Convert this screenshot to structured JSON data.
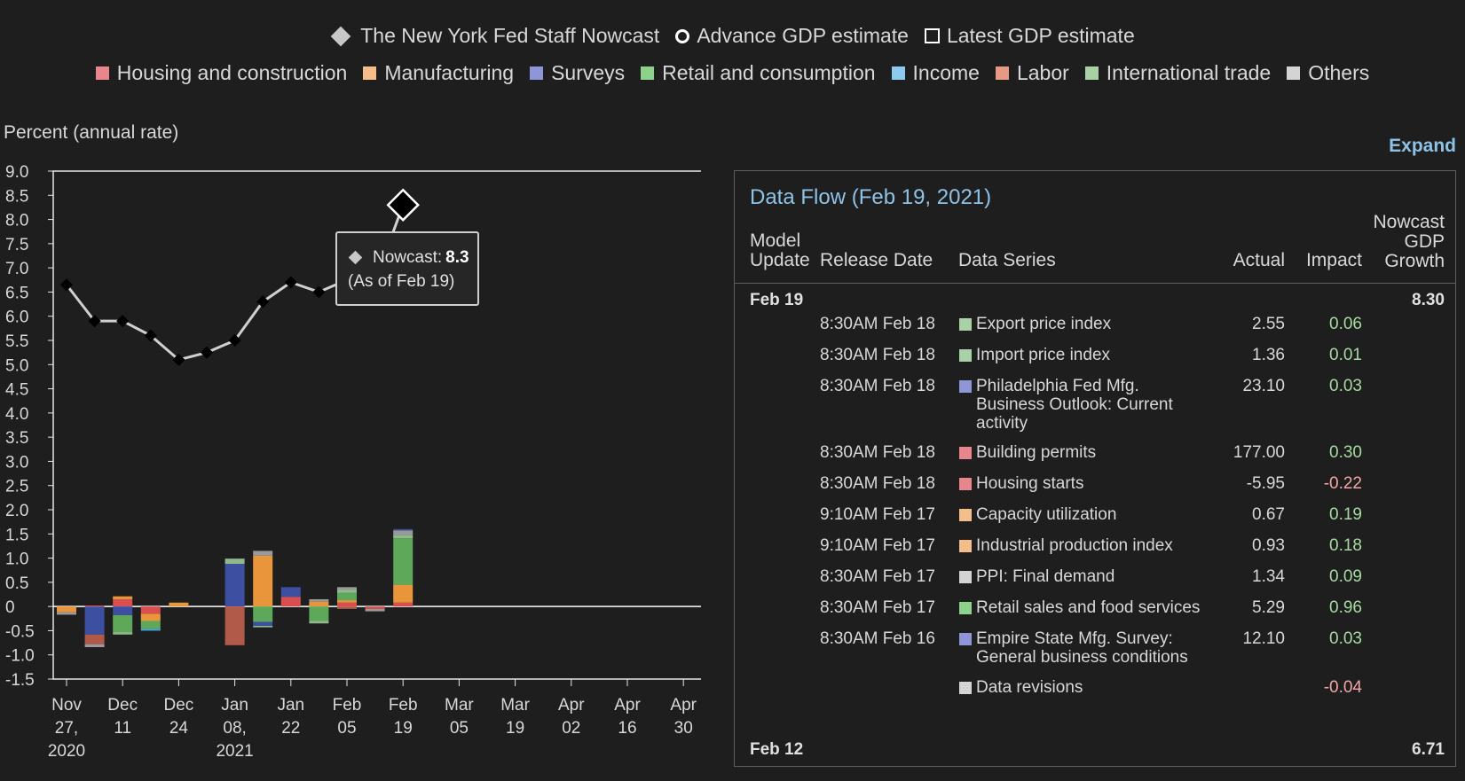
{
  "legend": {
    "markers": [
      {
        "label": "The New York Fed Staff Nowcast",
        "icon": "diamond-icon"
      },
      {
        "label": "Advance GDP estimate",
        "icon": "circle-icon"
      },
      {
        "label": "Latest GDP estimate",
        "icon": "square-outline-icon"
      }
    ],
    "categories": [
      {
        "label": "Housing and construction",
        "color": "#e8868e"
      },
      {
        "label": "Manufacturing",
        "color": "#f3be8a"
      },
      {
        "label": "Surveys",
        "color": "#8f96d8"
      },
      {
        "label": "Retail and consumption",
        "color": "#8cd28a"
      },
      {
        "label": "Income",
        "color": "#8ccbee"
      },
      {
        "label": "Labor",
        "color": "#e69a86"
      },
      {
        "label": "International trade",
        "color": "#a8d2a6"
      },
      {
        "label": "Others",
        "color": "#d4d4d4"
      }
    ]
  },
  "expand_label": "Expand",
  "tooltip": {
    "label": "Nowcast:",
    "value": "8.3",
    "asof": "(As of Feb 19)"
  },
  "chart_data": {
    "type": "line",
    "ylabel": "Percent (annual rate)",
    "ylim": [
      -1.5,
      9.0
    ],
    "yticks": [
      "9.0",
      "8.5",
      "8.0",
      "7.5",
      "7.0",
      "6.5",
      "6.0",
      "5.5",
      "5.0",
      "4.5",
      "4.0",
      "3.5",
      "3.0",
      "2.5",
      "2.0",
      "1.5",
      "1.0",
      "0.5",
      "0",
      "-0.5",
      "-1.0",
      "-1.5"
    ],
    "x_ticks": [
      [
        "Nov",
        "27,",
        "2020"
      ],
      [
        "Dec",
        "11"
      ],
      [
        "Dec",
        "24"
      ],
      [
        "Jan",
        "08,",
        "2021"
      ],
      [
        "Jan",
        "22"
      ],
      [
        "Feb",
        "05"
      ],
      [
        "Feb",
        "19"
      ],
      [
        "Mar",
        "05"
      ],
      [
        "Mar",
        "19"
      ],
      [
        "Apr",
        "02"
      ],
      [
        "Apr",
        "16"
      ],
      [
        "Apr",
        "30"
      ]
    ],
    "nowcast_series": {
      "name": "The New York Fed Staff Nowcast",
      "x": [
        "Nov 27",
        "Dec 04",
        "Dec 11",
        "Dec 18",
        "Dec 24",
        "Jan 01",
        "Jan 08",
        "Jan 15",
        "Jan 22",
        "Jan 29",
        "Feb 05",
        "Feb 12",
        "Feb 19"
      ],
      "values": [
        6.65,
        5.9,
        5.9,
        5.6,
        5.1,
        5.25,
        5.5,
        6.3,
        6.7,
        6.5,
        6.75,
        6.71,
        8.3
      ]
    },
    "impact_bars": [
      {
        "x": "Nov 27",
        "segments": [
          {
            "category": "Manufacturing",
            "value": -0.12
          },
          {
            "category": "Others",
            "value": -0.05
          }
        ]
      },
      {
        "x": "Dec 04",
        "segments": [
          {
            "category": "Surveys",
            "value": -0.58
          },
          {
            "category": "Labor",
            "value": -0.2
          },
          {
            "category": "Others",
            "value": -0.06
          },
          {
            "category": "Housing and construction",
            "value": 0.02
          }
        ]
      },
      {
        "x": "Dec 11",
        "segments": [
          {
            "category": "Housing and construction",
            "value": 0.15
          },
          {
            "category": "Manufacturing",
            "value": 0.06
          },
          {
            "category": "Surveys",
            "value": -0.18
          },
          {
            "category": "Retail and consumption",
            "value": -0.35
          },
          {
            "category": "International trade",
            "value": -0.05
          }
        ]
      },
      {
        "x": "Dec 18",
        "segments": [
          {
            "category": "Housing and construction",
            "value": -0.15
          },
          {
            "category": "Manufacturing",
            "value": -0.15
          },
          {
            "category": "Retail and consumption",
            "value": -0.16
          },
          {
            "category": "Income",
            "value": -0.04
          }
        ]
      },
      {
        "x": "Dec 24",
        "segments": [
          {
            "category": "Manufacturing",
            "value": 0.08
          }
        ]
      },
      {
        "x": "Jan 08",
        "segments": [
          {
            "category": "Surveys",
            "value": 0.88
          },
          {
            "category": "International trade",
            "value": 0.11
          },
          {
            "category": "Labor",
            "value": -0.8
          }
        ]
      },
      {
        "x": "Jan 15",
        "segments": [
          {
            "category": "Manufacturing",
            "value": 1.05
          },
          {
            "category": "Others",
            "value": 0.1
          },
          {
            "category": "Retail and consumption",
            "value": -0.32
          },
          {
            "category": "Surveys",
            "value": -0.08
          },
          {
            "category": "International trade",
            "value": -0.03
          }
        ]
      },
      {
        "x": "Jan 22",
        "segments": [
          {
            "category": "Housing and construction",
            "value": 0.2
          },
          {
            "category": "Surveys",
            "value": 0.2
          }
        ]
      },
      {
        "x": "Jan 29",
        "segments": [
          {
            "category": "Manufacturing",
            "value": 0.1
          },
          {
            "category": "Others",
            "value": 0.05
          },
          {
            "category": "Retail and consumption",
            "value": -0.3
          },
          {
            "category": "International trade",
            "value": -0.05
          }
        ]
      },
      {
        "x": "Feb 05",
        "segments": [
          {
            "category": "Housing and construction",
            "value": 0.08
          },
          {
            "category": "Manufacturing",
            "value": 0.05
          },
          {
            "category": "Retail and consumption",
            "value": 0.15
          },
          {
            "category": "International trade",
            "value": 0.07
          },
          {
            "category": "Others",
            "value": 0.05
          },
          {
            "category": "Labor",
            "value": -0.05
          }
        ]
      },
      {
        "x": "Feb 12",
        "segments": [
          {
            "category": "Housing and construction",
            "value": -0.05
          },
          {
            "category": "Others",
            "value": -0.05
          }
        ]
      },
      {
        "x": "Feb 19",
        "segments": [
          {
            "category": "Housing and construction",
            "value": 0.08
          },
          {
            "category": "Manufacturing",
            "value": 0.37
          },
          {
            "category": "Retail and consumption",
            "value": 0.96
          },
          {
            "category": "International trade",
            "value": 0.07
          },
          {
            "category": "Others",
            "value": 0.09
          },
          {
            "category": "Surveys",
            "value": 0.03
          }
        ]
      }
    ],
    "grid": false
  },
  "panel": {
    "title": "Data Flow (Feb 19, 2021)",
    "headers": {
      "model_update": [
        "Model",
        "Update"
      ],
      "release_date": "Release Date",
      "data_series": "Data Series",
      "actual": "Actual",
      "impact": "Impact",
      "nowcast": [
        "Nowcast",
        "GDP",
        "Growth"
      ]
    },
    "group_1": {
      "date": "Feb 19",
      "nowcast": "8.30"
    },
    "rows": [
      {
        "release": "8:30AM Feb 18",
        "series": "Export price index",
        "actual": "2.55",
        "impact": "0.06",
        "color": "#a8d2a6"
      },
      {
        "release": "8:30AM Feb 18",
        "series": "Import price index",
        "actual": "1.36",
        "impact": "0.01",
        "color": "#a8d2a6"
      },
      {
        "release": "8:30AM Feb 18",
        "series": "Philadelphia Fed Mfg. Business Outlook: Current activity",
        "actual": "23.10",
        "impact": "0.03",
        "color": "#8f96d8"
      },
      {
        "release": "8:30AM Feb 18",
        "series": "Building permits",
        "actual": "177.00",
        "impact": "0.30",
        "color": "#e8868e"
      },
      {
        "release": "8:30AM Feb 18",
        "series": "Housing starts",
        "actual": "-5.95",
        "impact": "-0.22",
        "color": "#e8868e"
      },
      {
        "release": "9:10AM Feb 17",
        "series": "Capacity utilization",
        "actual": "0.67",
        "impact": "0.19",
        "color": "#f3be8a"
      },
      {
        "release": "9:10AM Feb 17",
        "series": "Industrial production index",
        "actual": "0.93",
        "impact": "0.18",
        "color": "#f3be8a"
      },
      {
        "release": "8:30AM Feb 17",
        "series": "PPI: Final demand",
        "actual": "1.34",
        "impact": "0.09",
        "color": "#d4d4d4"
      },
      {
        "release": "8:30AM Feb 17",
        "series": "Retail sales and food services",
        "actual": "5.29",
        "impact": "0.96",
        "color": "#8cd28a"
      },
      {
        "release": "8:30AM Feb 16",
        "series": "Empire State Mfg. Survey: General business conditions",
        "actual": "12.10",
        "impact": "0.03",
        "color": "#8f96d8"
      },
      {
        "release": "",
        "series": "Data revisions",
        "actual": "",
        "impact": "-0.04",
        "color": "#d4d4d4"
      }
    ],
    "group_2": {
      "date": "Feb 12",
      "nowcast": "6.71"
    }
  }
}
